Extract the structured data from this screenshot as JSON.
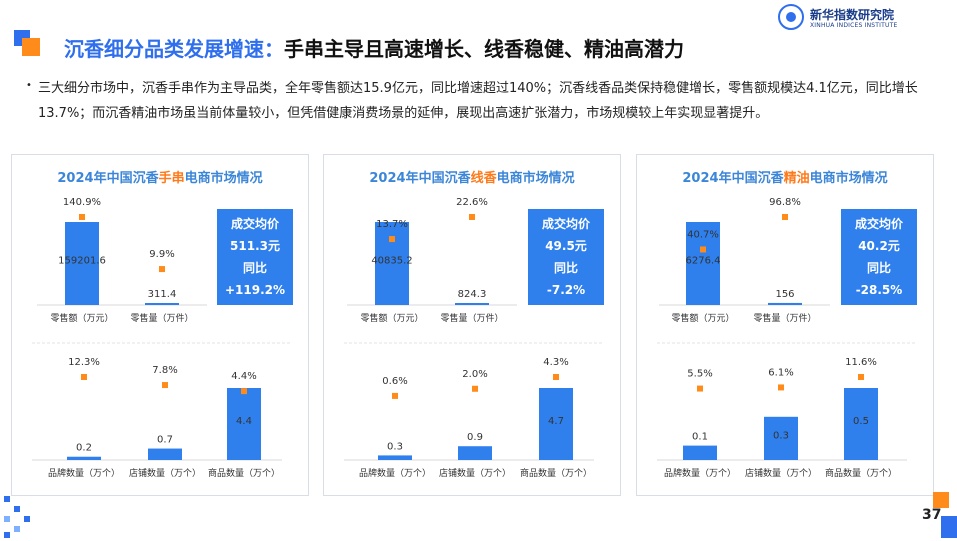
{
  "header": {
    "title_blue": "沉香细分品类发展增速：",
    "title_black": "手串主导且高速增长、线香稳健、精油高潜力",
    "logo_cn": "新华指数研究院",
    "logo_en": "XINHUA INDICES INSTITUTE"
  },
  "summary": "三大细分市场中，沉香手串作为主导品类，全年零售额达15.9亿元，同比增速超过140%；沉香线香品类保持稳健增长，零售额规模达4.1亿元，同比增长13.7%；而沉香精油市场虽当前体量较小，但凭借健康消费场景的延伸，展现出高速扩张潜力，市场规模较上年实现显著提升。",
  "page_number": "37",
  "colors": {
    "bar": "#2f80ed",
    "dot": "#ff8c1a",
    "title_blue": "#2f6fed",
    "panel_title": "#3b86d8",
    "highlight": "#ff7a1a"
  },
  "panels": [
    {
      "title_pre": "2024年中国沉香",
      "title_hl": "手串",
      "title_post": "电商市场情况",
      "price": {
        "label": "成交均价",
        "value": "511.3元",
        "yoy_label": "同比",
        "yoy": "+119.2%"
      }
    },
    {
      "title_pre": "2024年中国沉香",
      "title_hl": "线香",
      "title_post": "电商市场情况",
      "price": {
        "label": "成交均价",
        "value": "49.5元",
        "yoy_label": "同比",
        "yoy": "-7.2%"
      }
    },
    {
      "title_pre": "2024年中国沉香",
      "title_hl": "精油",
      "title_post": "电商市场情况",
      "price": {
        "label": "成交均价",
        "value": "40.2元",
        "yoy_label": "同比",
        "yoy": "-28.5%"
      }
    }
  ],
  "chart_data": [
    {
      "type": "bar",
      "panel": "手串-销售",
      "categories": [
        "零售额（万元）",
        "零售量（万件）"
      ],
      "series": [
        {
          "values": [
            159201.6,
            311.4
          ]
        }
      ],
      "growth": [
        "140.9%",
        "9.9%"
      ],
      "growth_values": [
        140.9,
        9.9
      ]
    },
    {
      "type": "bar",
      "panel": "手串-数量",
      "categories": [
        "品牌数量（万个）",
        "店铺数量（万个）",
        "商品数量（万个）"
      ],
      "series": [
        {
          "values": [
            0.2,
            0.7,
            4.4
          ]
        }
      ],
      "growth": [
        "12.3%",
        "7.8%",
        "4.4%"
      ],
      "growth_values": [
        12.3,
        7.8,
        4.4
      ]
    },
    {
      "type": "bar",
      "panel": "线香-销售",
      "categories": [
        "零售额（万元）",
        "零售量（万件）"
      ],
      "series": [
        {
          "values": [
            40835.2,
            824.3
          ]
        }
      ],
      "growth": [
        "13.7%",
        "22.6%"
      ],
      "growth_values": [
        13.7,
        22.6
      ]
    },
    {
      "type": "bar",
      "panel": "线香-数量",
      "categories": [
        "品牌数量（万个）",
        "店铺数量（万个）",
        "商品数量（万个）"
      ],
      "series": [
        {
          "values": [
            0.3,
            0.9,
            4.7
          ]
        }
      ],
      "growth": [
        "0.6%",
        "2.0%",
        "4.3%"
      ],
      "growth_values": [
        0.6,
        2.0,
        4.3
      ]
    },
    {
      "type": "bar",
      "panel": "精油-销售",
      "categories": [
        "零售额（万元）",
        "零售量（万件）"
      ],
      "series": [
        {
          "values": [
            6276.4,
            156.0
          ]
        }
      ],
      "growth": [
        "40.7%",
        "96.8%"
      ],
      "growth_values": [
        40.7,
        96.8
      ]
    },
    {
      "type": "bar",
      "panel": "精油-数量",
      "categories": [
        "品牌数量（万个）",
        "店铺数量（万个）",
        "商品数量（万个）"
      ],
      "series": [
        {
          "values": [
            0.1,
            0.3,
            0.5
          ]
        }
      ],
      "growth": [
        "5.5%",
        "6.1%",
        "11.6%"
      ],
      "growth_values": [
        5.5,
        6.1,
        11.6
      ]
    }
  ]
}
